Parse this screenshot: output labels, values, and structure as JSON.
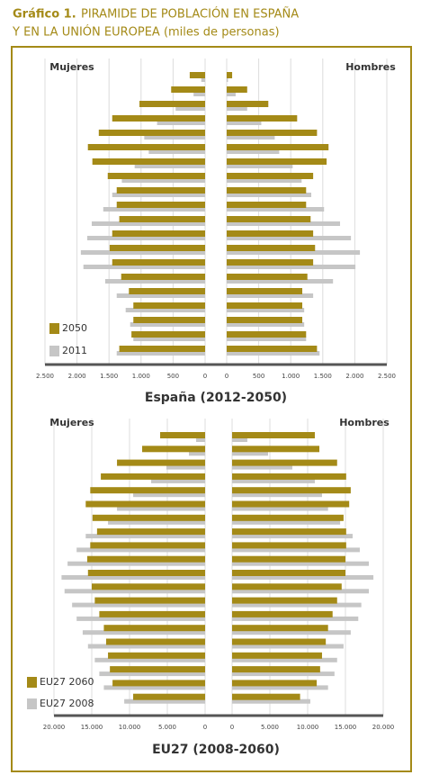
{
  "header": {
    "label": "Gráfico 1.",
    "lines": [
      "PIRAMIDE DE POBLACIÓN EN ESPAÑA",
      "Y EN LA UNIÓN EUROPEA (miles de personas)"
    ]
  },
  "chart_data": [
    {
      "type": "pyramid",
      "title": "España (2012-2050)",
      "left_label": "Mujeres",
      "right_label": "Hombres",
      "categories": [
        null,
        null,
        null,
        null,
        null,
        null,
        null,
        null,
        null,
        null,
        null,
        null,
        null,
        null,
        null,
        null,
        null,
        null,
        null,
        null
      ],
      "xlim": [
        0,
        2500
      ],
      "xticks": [
        0,
        {
          "value": 500,
          "label": "500"
        },
        {
          "value": 1000,
          "label": "1.000"
        },
        {
          "value": 1500,
          "label": "1.500"
        },
        {
          "value": 2000,
          "label": "2.000"
        },
        {
          "value": 2500,
          "label": "2.500"
        }
      ],
      "grid": true,
      "series": [
        {
          "name": "2050",
          "color": "#a48a17",
          "left": [
            240,
            530,
            1025,
            1450,
            1660,
            1830,
            1760,
            1520,
            1380,
            1380,
            1340,
            1450,
            1490,
            1450,
            1310,
            1190,
            1120,
            1120,
            1150,
            1340
          ],
          "right": [
            85,
            320,
            650,
            1100,
            1410,
            1590,
            1560,
            1350,
            1240,
            1240,
            1310,
            1350,
            1380,
            1350,
            1260,
            1180,
            1180,
            1180,
            1240,
            1410
          ]
        },
        {
          "name": "2011",
          "color": "#c6c6c6",
          "left": [
            60,
            180,
            460,
            750,
            950,
            880,
            1100,
            1300,
            1450,
            1590,
            1770,
            1840,
            1940,
            1900,
            1560,
            1380,
            1240,
            1170,
            1120,
            1380
          ],
          "right": [
            20,
            140,
            320,
            540,
            750,
            820,
            1030,
            1170,
            1320,
            1520,
            1770,
            1940,
            2080,
            2010,
            1660,
            1350,
            1210,
            1210,
            1240,
            1450
          ]
        }
      ]
    },
    {
      "type": "pyramid",
      "title": "EU27 (2008-2060)",
      "left_label": "Mujeres",
      "right_label": "Hombres",
      "categories": [
        null,
        null,
        null,
        null,
        null,
        null,
        null,
        null,
        null,
        null,
        null,
        null,
        null,
        null,
        null,
        null,
        null,
        null,
        null,
        null
      ],
      "xlim": [
        0,
        20000
      ],
      "xticks": [
        0,
        {
          "value": 5000,
          "label": "5.000"
        },
        {
          "value": 10000,
          "label": "10.000"
        },
        {
          "value": 15000,
          "label": "15.000"
        },
        {
          "value": 20000,
          "label": "20.000"
        }
      ],
      "grid": true,
      "series": [
        {
          "name": "EU27 2060",
          "color": "#a48a17",
          "left": [
            5950,
            8330,
            11660,
            13800,
            15200,
            15800,
            14900,
            14300,
            15200,
            15600,
            15500,
            15000,
            14600,
            14000,
            13400,
            13100,
            12850,
            12600,
            12250,
            9520
          ],
          "right": [
            10950,
            11550,
            13900,
            15100,
            15700,
            15500,
            14750,
            15100,
            15100,
            15000,
            15000,
            14500,
            13900,
            13300,
            12700,
            12400,
            11900,
            11650,
            11200,
            9000
          ]
        },
        {
          "name": "EU27 2008",
          "color": "#c6c6c6",
          "left": [
            1190,
            2140,
            5120,
            7140,
            9520,
            11660,
            12850,
            15800,
            17000,
            18200,
            19000,
            18600,
            17600,
            17000,
            16200,
            15500,
            14600,
            14000,
            13400,
            10700
          ],
          "right": [
            2020,
            4760,
            7970,
            10950,
            11900,
            12700,
            14300,
            15950,
            16900,
            18100,
            18700,
            18100,
            17100,
            16700,
            15700,
            14750,
            13900,
            13550,
            12700,
            10350
          ]
        }
      ]
    }
  ]
}
